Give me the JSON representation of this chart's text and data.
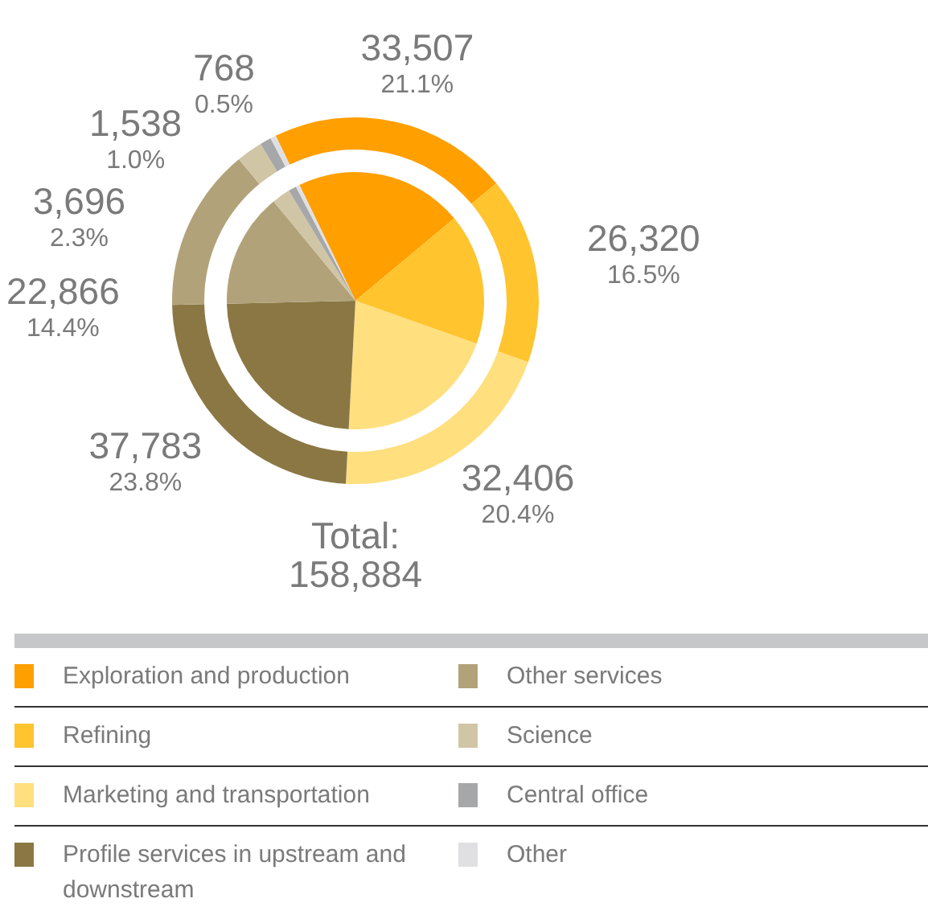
{
  "chart_data": {
    "type": "donut",
    "categories": [
      "Exploration and production",
      "Refining",
      "Marketing and transportation",
      "Profile services in upstream and downstream",
      "Other services",
      "Science",
      "Central office",
      "Other"
    ],
    "series": [
      {
        "values": [
          21.1,
          16.5,
          20.4,
          23.8,
          14.4,
          2.3,
          1.0,
          0.5
        ]
      },
      {
        "values": [
          21.1,
          16.5,
          20.4,
          23.8,
          14.4,
          2.3,
          1.0,
          0.5
        ]
      }
    ],
    "colors": [
      "#ff9f00",
      "#ffc42e",
      "#ffdf7e",
      "#8a7743",
      "#b1a27a",
      "#d0c5a5",
      "#a6a7a9",
      "#e0e0e2"
    ],
    "value_labels": [
      "33,507\n21.1%",
      "26,320\n16.5%",
      "32,406\n20.4%",
      "37,783\n23.8%",
      "22,866\n14.4%",
      "3,696\n2.3%",
      "1,538\n1.0%",
      "768\n0.5%"
    ],
    "annotations": [
      "Total:\n158,884"
    ],
    "legend": "bottom"
  }
}
